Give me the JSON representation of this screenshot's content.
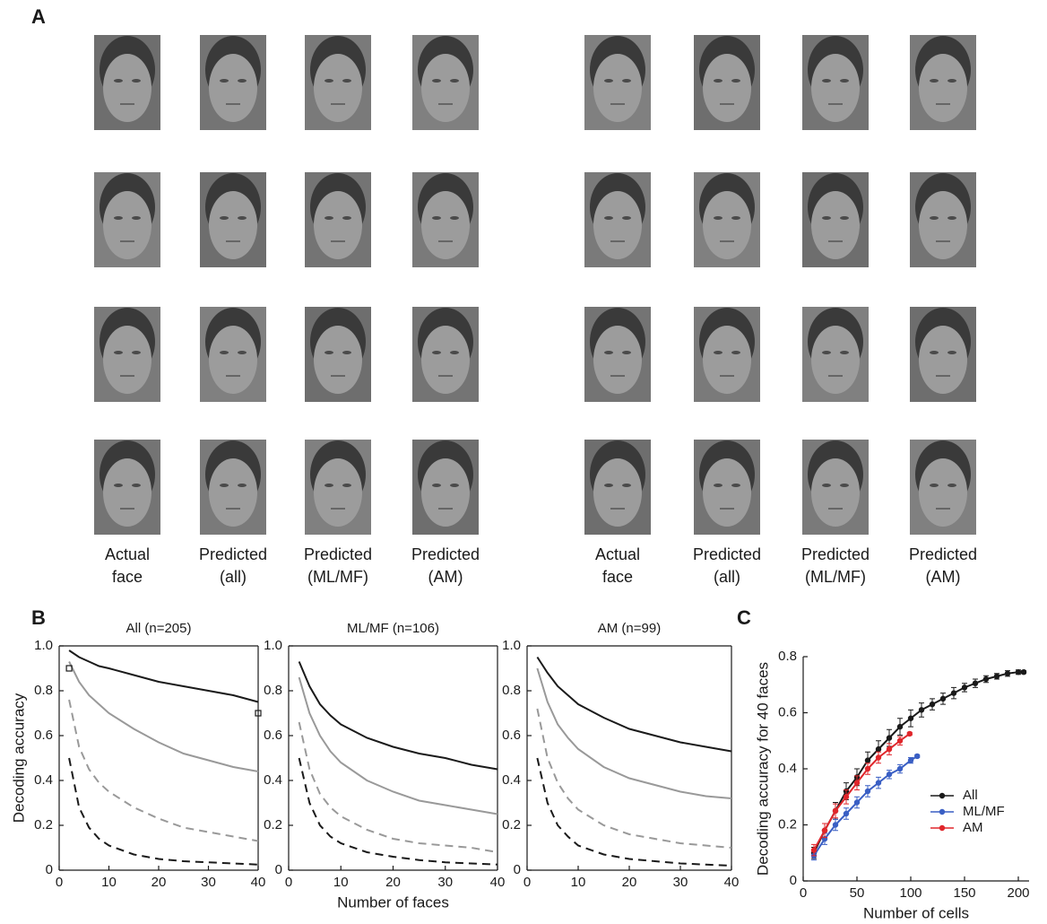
{
  "panel_a": {
    "label": "A",
    "groups": [
      {
        "captions": [
          [
            "Actual",
            "face"
          ],
          [
            "Predicted",
            "(all)"
          ],
          [
            "Predicted",
            "(ML/MF)"
          ],
          [
            "Predicted",
            "(AM)"
          ]
        ]
      },
      {
        "captions": [
          [
            "Actual",
            "face"
          ],
          [
            "Predicted",
            "(all)"
          ],
          [
            "Predicted",
            "(ML/MF)"
          ],
          [
            "Predicted",
            "(AM)"
          ]
        ]
      }
    ]
  },
  "panel_b_label": "B",
  "panel_c_label": "C",
  "chart_data": [
    {
      "type": "line",
      "title": "All (n=205)",
      "y_label": "Decoding accuracy",
      "x": [
        2,
        4,
        6,
        8,
        10,
        15,
        20,
        25,
        30,
        35,
        40
      ],
      "xlim": [
        0,
        40
      ],
      "xticks": [
        0,
        10,
        20,
        30,
        40
      ],
      "ylim": [
        0,
        1
      ],
      "yticks": [
        0,
        0.2,
        0.4,
        0.6,
        0.8,
        {
          "value": 1,
          "label": "1.0"
        }
      ],
      "series": [
        {
          "color": "#1a1a1a",
          "values": [
            0.98,
            0.95,
            0.93,
            0.91,
            0.9,
            0.87,
            0.84,
            0.82,
            0.8,
            0.78,
            0.75
          ]
        },
        {
          "color": "#999999",
          "values": [
            0.93,
            0.84,
            0.78,
            0.74,
            0.7,
            0.63,
            0.57,
            0.52,
            0.49,
            0.46,
            0.44
          ]
        },
        {
          "color": "#999999",
          "dash": true,
          "values": [
            0.76,
            0.55,
            0.45,
            0.39,
            0.35,
            0.28,
            0.23,
            0.19,
            0.17,
            0.15,
            0.13
          ]
        },
        {
          "color": "#1a1a1a",
          "dash": true,
          "values": [
            0.5,
            0.28,
            0.19,
            0.14,
            0.11,
            0.07,
            0.05,
            0.04,
            0.035,
            0.03,
            0.025
          ]
        },
        {
          "color": "#1a1a1a",
          "line": false,
          "marker": "square",
          "x": [
            2,
            40
          ],
          "values": [
            0.9,
            0.7
          ]
        }
      ]
    },
    {
      "type": "line",
      "title": "ML/MF (n=106)",
      "x_label": "Number of faces",
      "x": [
        2,
        4,
        6,
        8,
        10,
        15,
        20,
        25,
        30,
        35,
        40
      ],
      "xlim": [
        0,
        40
      ],
      "xticks": [
        0,
        10,
        20,
        30,
        40
      ],
      "ylim": [
        0,
        1
      ],
      "yticks": [
        0,
        0.2,
        0.4,
        0.6,
        0.8,
        {
          "value": 1,
          "label": "1.0"
        }
      ],
      "series": [
        {
          "color": "#1a1a1a",
          "values": [
            0.93,
            0.82,
            0.74,
            0.69,
            0.65,
            0.59,
            0.55,
            0.52,
            0.5,
            0.47,
            0.45
          ]
        },
        {
          "color": "#999999",
          "values": [
            0.86,
            0.7,
            0.6,
            0.53,
            0.48,
            0.4,
            0.35,
            0.31,
            0.29,
            0.27,
            0.25
          ]
        },
        {
          "color": "#999999",
          "dash": true,
          "values": [
            0.66,
            0.45,
            0.34,
            0.28,
            0.24,
            0.18,
            0.14,
            0.12,
            0.11,
            0.1,
            0.08
          ]
        },
        {
          "color": "#1a1a1a",
          "dash": true,
          "values": [
            0.5,
            0.3,
            0.2,
            0.15,
            0.12,
            0.08,
            0.06,
            0.045,
            0.035,
            0.03,
            0.025
          ]
        }
      ]
    },
    {
      "type": "line",
      "title": "AM (n=99)",
      "x": [
        2,
        4,
        6,
        8,
        10,
        15,
        20,
        25,
        30,
        35,
        40
      ],
      "xlim": [
        0,
        40
      ],
      "xticks": [
        0,
        10,
        20,
        30,
        40
      ],
      "ylim": [
        0,
        1
      ],
      "yticks": [
        0,
        0.2,
        0.4,
        0.6,
        0.8,
        {
          "value": 1,
          "label": "1.0"
        }
      ],
      "series": [
        {
          "color": "#1a1a1a",
          "values": [
            0.95,
            0.88,
            0.82,
            0.78,
            0.74,
            0.68,
            0.63,
            0.6,
            0.57,
            0.55,
            0.53
          ]
        },
        {
          "color": "#999999",
          "values": [
            0.9,
            0.75,
            0.65,
            0.59,
            0.54,
            0.46,
            0.41,
            0.38,
            0.35,
            0.33,
            0.32
          ]
        },
        {
          "color": "#999999",
          "dash": true,
          "values": [
            0.72,
            0.5,
            0.39,
            0.32,
            0.27,
            0.2,
            0.16,
            0.14,
            0.12,
            0.11,
            0.1
          ]
        },
        {
          "color": "#1a1a1a",
          "dash": true,
          "values": [
            0.5,
            0.3,
            0.2,
            0.15,
            0.11,
            0.07,
            0.05,
            0.04,
            0.03,
            0.025,
            0.02
          ]
        }
      ]
    },
    {
      "type": "line",
      "x_label": "Number of cells",
      "y_label": "Decoding accuracy for 40 faces",
      "xlim": [
        0,
        210
      ],
      "xticks": [
        0,
        50,
        100,
        150,
        200
      ],
      "ylim": [
        0,
        0.8
      ],
      "yticks": [
        0,
        0.2,
        0.4,
        0.6,
        0.8
      ],
      "legend": "lower right",
      "series": [
        {
          "name": "All",
          "color": "#1a1a1a",
          "marker": "circle",
          "x": [
            10,
            20,
            30,
            40,
            50,
            60,
            70,
            80,
            90,
            100,
            110,
            120,
            130,
            140,
            150,
            160,
            170,
            180,
            190,
            200,
            205
          ],
          "values": [
            0.1,
            0.18,
            0.25,
            0.32,
            0.37,
            0.43,
            0.47,
            0.51,
            0.55,
            0.58,
            0.61,
            0.63,
            0.65,
            0.67,
            0.69,
            0.705,
            0.72,
            0.73,
            0.74,
            0.745,
            0.745
          ],
          "errors": [
            0.02,
            0.025,
            0.03,
            0.03,
            0.03,
            0.03,
            0.03,
            0.03,
            0.03,
            0.03,
            0.025,
            0.02,
            0.02,
            0.02,
            0.015,
            0.015,
            0.012,
            0.01,
            0.01,
            0.008,
            0.005
          ]
        },
        {
          "name": "ML/MF",
          "color": "#3a5fc4",
          "marker": "circle",
          "x": [
            10,
            20,
            30,
            40,
            50,
            60,
            70,
            80,
            90,
            100,
            106
          ],
          "values": [
            0.09,
            0.15,
            0.2,
            0.24,
            0.28,
            0.32,
            0.35,
            0.38,
            0.4,
            0.43,
            0.445
          ],
          "errors": [
            0.015,
            0.02,
            0.02,
            0.02,
            0.02,
            0.02,
            0.02,
            0.015,
            0.015,
            0.01,
            0.005
          ]
        },
        {
          "name": "AM",
          "color": "#e0262b",
          "marker": "circle",
          "x": [
            10,
            20,
            30,
            40,
            50,
            60,
            70,
            80,
            90,
            99
          ],
          "values": [
            0.11,
            0.18,
            0.25,
            0.3,
            0.35,
            0.4,
            0.44,
            0.47,
            0.5,
            0.525
          ],
          "errors": [
            0.02,
            0.025,
            0.025,
            0.025,
            0.025,
            0.02,
            0.02,
            0.02,
            0.015,
            0.005
          ]
        }
      ]
    }
  ]
}
